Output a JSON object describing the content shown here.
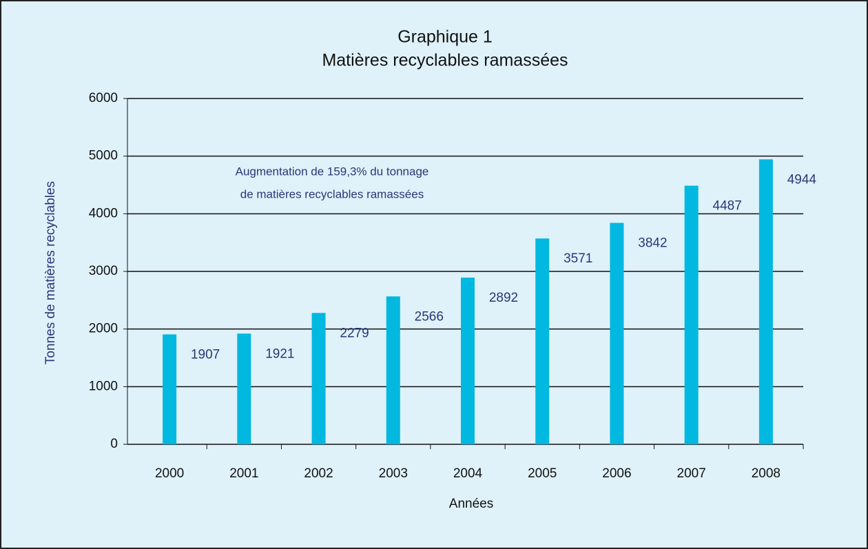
{
  "chart_data": {
    "type": "bar",
    "title": "Graphique 1",
    "subtitle": "Matières recyclables ramassées",
    "categories": [
      "2000",
      "2001",
      "2002",
      "2003",
      "2004",
      "2005",
      "2006",
      "2007",
      "2008"
    ],
    "values": [
      1907,
      1921,
      2279,
      2566,
      2892,
      3571,
      3842,
      4487,
      4944
    ],
    "color": "#00b8e0",
    "ylim": [
      0,
      6000
    ],
    "yticks": [
      0,
      1000,
      2000,
      3000,
      4000,
      5000,
      6000
    ],
    "grid": true,
    "x_label": "Années",
    "y_label": "Tonnes de matières recyclables",
    "annotation": [
      "Augmentation de 159,3% du tonnage",
      "de matières recyclables ramassées"
    ]
  }
}
